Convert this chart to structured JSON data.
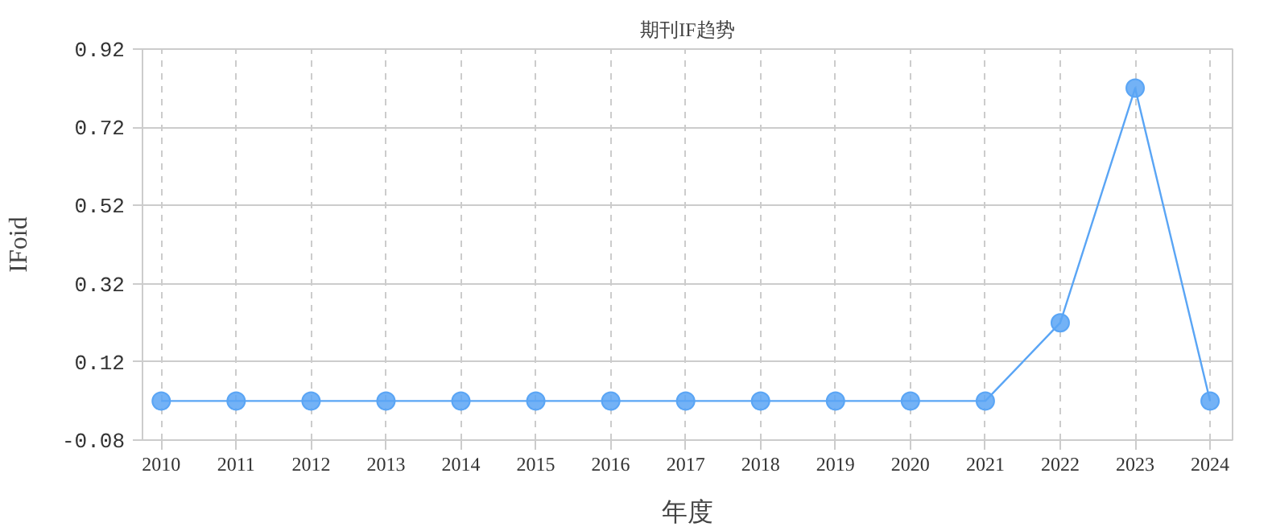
{
  "chart_data": {
    "type": "line",
    "title": "期刊IF趋势",
    "xlabel": "年度",
    "ylabel": "IFoid",
    "categories": [
      "2010",
      "2011",
      "2012",
      "2013",
      "2014",
      "2015",
      "2016",
      "2017",
      "2018",
      "2019",
      "2020",
      "2021",
      "2022",
      "2023",
      "2024"
    ],
    "series": [
      {
        "color": "#5aa5f5",
        "values": [
          0.02,
          0.02,
          0.02,
          0.02,
          0.02,
          0.02,
          0.02,
          0.02,
          0.02,
          0.02,
          0.02,
          0.02,
          0.22,
          0.82,
          0.02
        ]
      }
    ],
    "ylim": [
      -0.08,
      0.92
    ],
    "yticks": [
      -0.08,
      0.12,
      0.32,
      0.52,
      0.72,
      0.92
    ],
    "grid": true,
    "marker": "circle",
    "line_style": "solid"
  }
}
